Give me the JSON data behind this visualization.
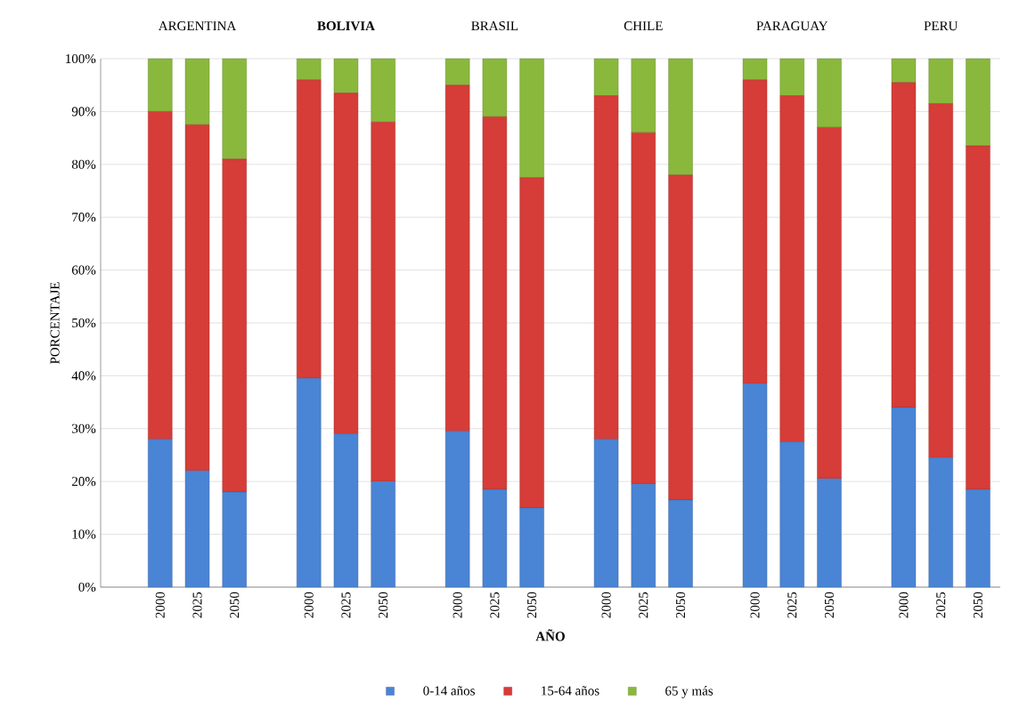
{
  "chart_data": {
    "type": "bar",
    "stacked": true,
    "categories": [
      "2000",
      "2025",
      "2050",
      null,
      "2000",
      "2025",
      "2050",
      null,
      "2000",
      "2025",
      "2050",
      null,
      "2000",
      "2025",
      "2050",
      null,
      "2000",
      "2025",
      "2050",
      null,
      "2000",
      "2025",
      "2050"
    ],
    "series": [
      {
        "name": "0-14 años",
        "color": "#4a84d4",
        "values": [
          28,
          22,
          18,
          null,
          39.5,
          29,
          20,
          null,
          29.5,
          18.5,
          15,
          null,
          28,
          19.5,
          16.5,
          null,
          38.5,
          27.5,
          20.5,
          null,
          34,
          24.5,
          18.5
        ]
      },
      {
        "name": "15-64 años",
        "color": "#d63c38",
        "values": [
          62,
          65.5,
          63,
          null,
          56.5,
          64.5,
          68,
          null,
          65.5,
          70.5,
          62.5,
          null,
          65,
          66.5,
          61.5,
          null,
          57.5,
          65.5,
          66.5,
          null,
          61.5,
          67,
          65
        ]
      },
      {
        "name": "65 y más",
        "color": "#8ab83c",
        "values": [
          10,
          12.5,
          19,
          null,
          4,
          6.5,
          12,
          null,
          5,
          11,
          22.5,
          null,
          7,
          14,
          22,
          null,
          4,
          7,
          13,
          null,
          4.5,
          8.5,
          16.5
        ]
      }
    ],
    "ylim": [
      0,
      100
    ],
    "yticks": [
      {
        "value": 0,
        "label": "0%"
      },
      {
        "value": 10,
        "label": "10%"
      },
      {
        "value": 20,
        "label": "20%"
      },
      {
        "value": 30,
        "label": "30%"
      },
      {
        "value": 40,
        "label": "40%"
      },
      {
        "value": 50,
        "label": "50%"
      },
      {
        "value": 60,
        "label": "60%"
      },
      {
        "value": 70,
        "label": "70%"
      },
      {
        "value": 80,
        "label": "80%"
      },
      {
        "value": 90,
        "label": "90%"
      },
      {
        "value": 100,
        "label": "100%"
      }
    ],
    "xlabel": "AÑO",
    "ylabel": "PORCENTAJE",
    "annotations": [
      "ARGENTINA",
      "**BOLIVIA**",
      "BRASIL",
      "CHILE",
      "PARAGUAY",
      "PERU"
    ],
    "grid": "y",
    "legend": "bottom"
  }
}
